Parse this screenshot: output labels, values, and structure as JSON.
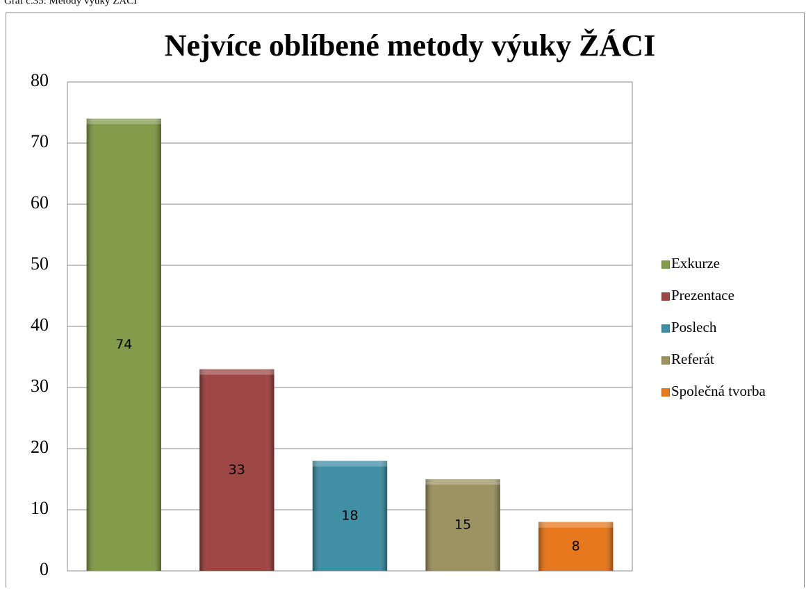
{
  "caption": "Graf č.35: Metody výuky ŽÁCI",
  "chart_data": {
    "type": "bar",
    "title": "Nejvíce oblíbené metody výuky ŽÁCI",
    "categories": [
      "Exkurze",
      "Prezentace",
      "Poslech",
      "Referát",
      "Společná tvorba"
    ],
    "values": [
      74,
      33,
      18,
      15,
      8
    ],
    "colors": [
      "#77933c",
      "#953735",
      "#31859c",
      "#948a54",
      "#e46c0a"
    ],
    "ylim": [
      0,
      80
    ],
    "yticks": [
      0,
      10,
      20,
      30,
      40,
      50,
      60,
      70,
      80
    ],
    "grid": true,
    "legend": "right"
  }
}
